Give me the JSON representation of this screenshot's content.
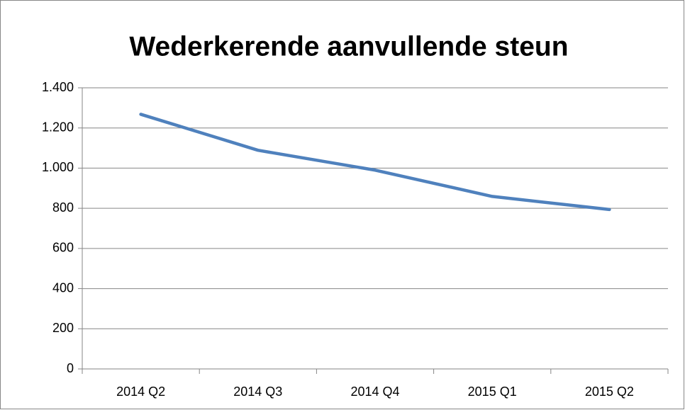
{
  "chart_data": {
    "type": "line",
    "title": "Wederkerende aanvullende steun",
    "categories": [
      "2014 Q2",
      "2014 Q3",
      "2014 Q4",
      "2015 Q1",
      "2015 Q2"
    ],
    "series": [
      {
        "name": "Wederkerende aanvullende steun",
        "color": "#4f81bd",
        "values": [
          1268,
          1089,
          990,
          859,
          794
        ]
      }
    ],
    "ylim": [
      0,
      1400
    ],
    "yticks": [
      0,
      200,
      400,
      600,
      800,
      {
        "value": 1000,
        "label": "1.000"
      },
      {
        "value": 1200,
        "label": "1.200"
      },
      {
        "value": 1400,
        "label": "1.400"
      }
    ],
    "grid": true
  }
}
